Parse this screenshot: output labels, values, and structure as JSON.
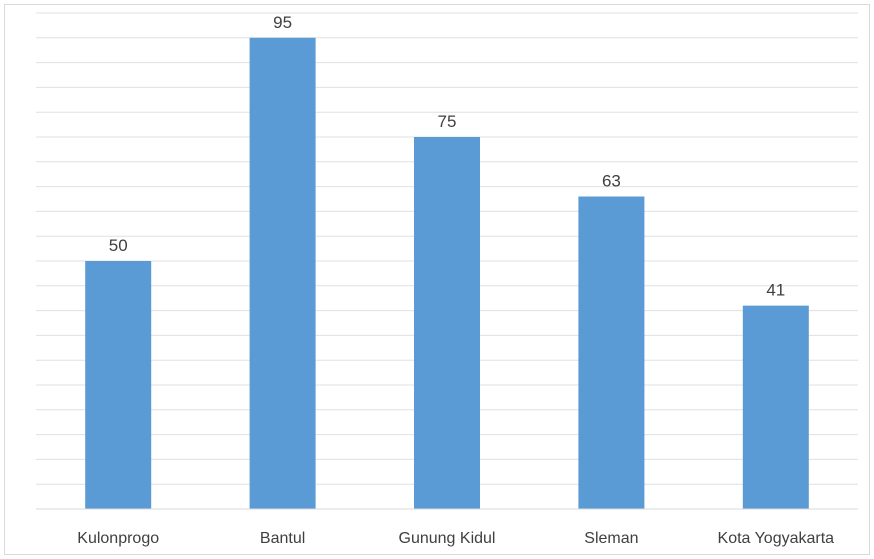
{
  "chart_data": {
    "type": "bar",
    "title": "",
    "xlabel": "",
    "ylabel": "",
    "categories": [
      "Kulonprogo",
      "Bantul",
      "Gunung Kidul",
      "Sleman",
      "Kota Yogyakarta"
    ],
    "values": [
      50,
      95,
      75,
      63,
      41
    ],
    "ylim": [
      0,
      100
    ],
    "grid": true,
    "legend": "none",
    "bar_color": "#5b9bd5",
    "gridline_color": "#e0e0e0",
    "data_labels": true
  }
}
